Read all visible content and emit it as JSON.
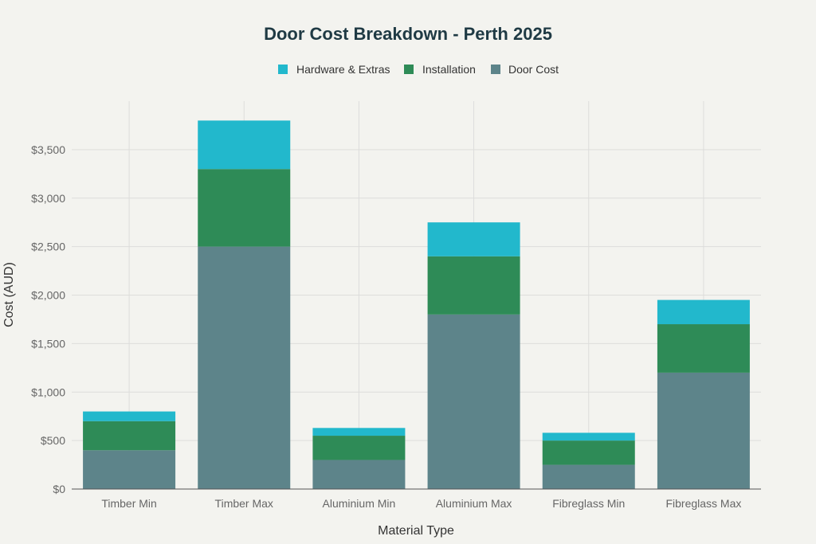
{
  "chart_data": {
    "type": "bar",
    "stacked": true,
    "title": "Door Cost Breakdown - Perth 2025",
    "xlabel": "Material Type",
    "ylabel": "Cost (AUD)",
    "ylim": [
      0,
      4000
    ],
    "yticks": [
      0,
      500,
      1000,
      1500,
      2000,
      2500,
      3000,
      3500
    ],
    "ytick_labels": [
      "$0",
      "$500",
      "$1,000",
      "$1,500",
      "$2,000",
      "$2,500",
      "$3,000",
      "$3,500"
    ],
    "grid": true,
    "legend_placement": "top-center",
    "categories": [
      "Timber Min",
      "Timber Max",
      "Aluminium Min",
      "Aluminium Max",
      "Fibreglass Min",
      "Fibreglass Max"
    ],
    "series": [
      {
        "name": "Door Cost",
        "color": "#5d848a",
        "values": [
          400,
          2500,
          300,
          1800,
          250,
          1200
        ]
      },
      {
        "name": "Installation",
        "color": "#2e8b57",
        "values": [
          300,
          800,
          250,
          600,
          250,
          500
        ]
      },
      {
        "name": "Hardware & Extras",
        "color": "#22b8cc",
        "values": [
          100,
          500,
          80,
          350,
          80,
          250
        ]
      }
    ],
    "legend_order": [
      "Hardware & Extras",
      "Installation",
      "Door Cost"
    ]
  }
}
